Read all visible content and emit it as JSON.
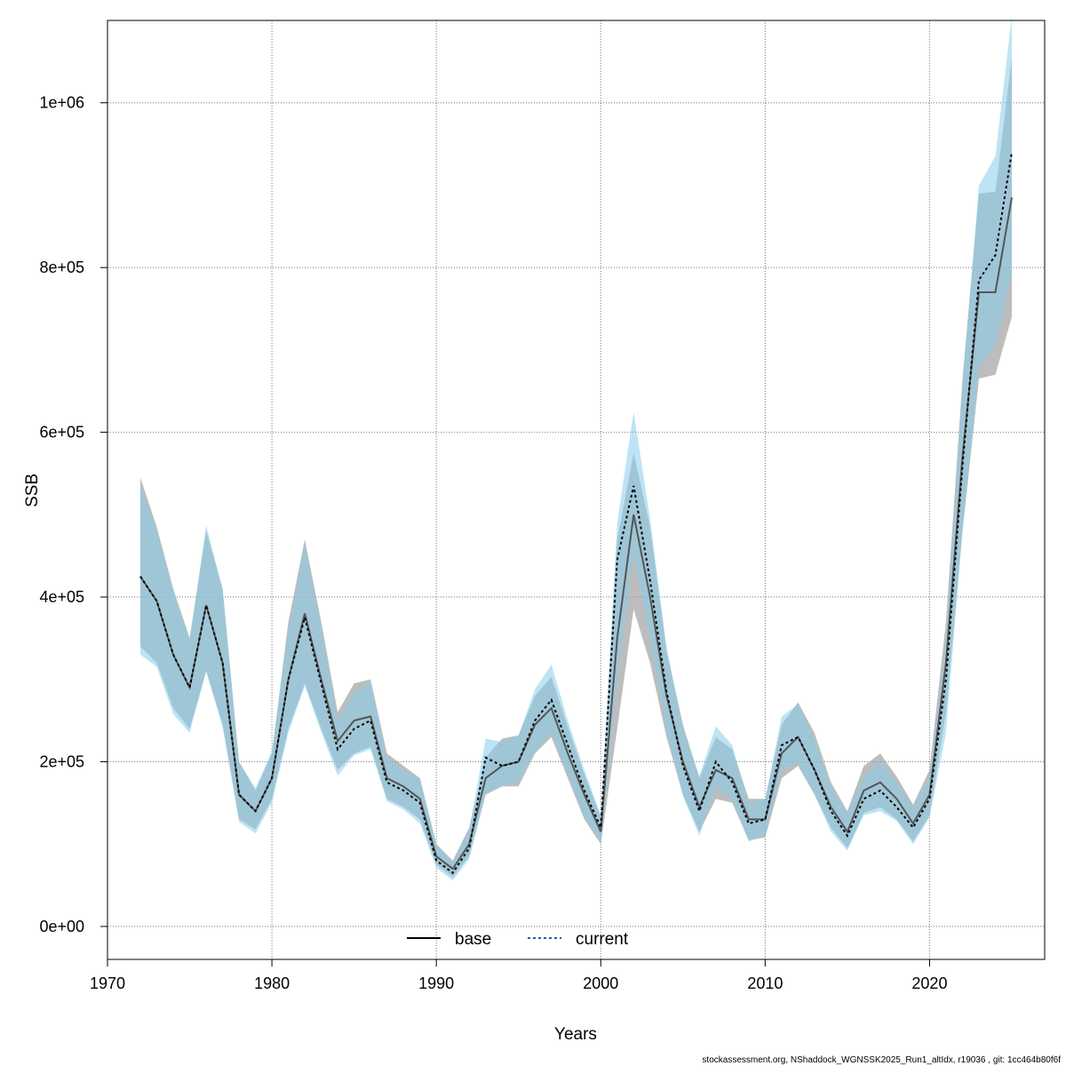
{
  "chart_data": {
    "type": "line",
    "xlabel": "Years",
    "ylabel": "SSB",
    "xlim": [
      1970,
      2027
    ],
    "ylim": [
      -40000,
      1100000
    ],
    "x_ticks": [
      1970,
      1980,
      1990,
      2000,
      2010,
      2020
    ],
    "x_tick_labels": [
      "1970",
      "1980",
      "1990",
      "2000",
      "2010",
      "2020"
    ],
    "y_ticks": [
      0,
      200000,
      400000,
      600000,
      800000,
      1000000
    ],
    "y_tick_labels": [
      "0e+00",
      "2e+05",
      "4e+05",
      "6e+05",
      "8e+05",
      "1e+06"
    ],
    "grid": true,
    "legend_position": "bottom-center",
    "x": [
      1972,
      1973,
      1974,
      1975,
      1976,
      1977,
      1978,
      1979,
      1980,
      1981,
      1982,
      1983,
      1984,
      1985,
      1986,
      1987,
      1988,
      1989,
      1990,
      1991,
      1992,
      1993,
      1994,
      1995,
      1996,
      1997,
      1998,
      1999,
      2000,
      2001,
      2002,
      2003,
      2004,
      2005,
      2006,
      2007,
      2008,
      2009,
      2010,
      2011,
      2012,
      2013,
      2014,
      2015,
      2016,
      2017,
      2018,
      2019,
      2020,
      2021,
      2022,
      2023,
      2024,
      2025
    ],
    "series": [
      {
        "name": "base",
        "color": "#000000",
        "band_color": "#999999",
        "line_style": "solid",
        "values": [
          425000,
          395000,
          330000,
          290000,
          390000,
          320000,
          160000,
          140000,
          180000,
          300000,
          380000,
          300000,
          225000,
          250000,
          255000,
          180000,
          170000,
          155000,
          85000,
          70000,
          100000,
          180000,
          195000,
          200000,
          245000,
          265000,
          210000,
          160000,
          115000,
          350000,
          500000,
          400000,
          280000,
          200000,
          145000,
          190000,
          180000,
          130000,
          130000,
          210000,
          230000,
          190000,
          145000,
          115000,
          165000,
          175000,
          155000,
          125000,
          160000,
          320000,
          570000,
          770000,
          770000,
          885000
        ],
        "lower": [
          340000,
          320000,
          265000,
          240000,
          310000,
          245000,
          130000,
          118000,
          155000,
          240000,
          295000,
          240000,
          190000,
          210000,
          218000,
          155000,
          145000,
          130000,
          75000,
          60000,
          85000,
          160000,
          170000,
          170000,
          210000,
          230000,
          180000,
          130000,
          100000,
          240000,
          385000,
          320000,
          230000,
          160000,
          115000,
          155000,
          150000,
          105000,
          108000,
          180000,
          195000,
          160000,
          120000,
          95000,
          138000,
          145000,
          130000,
          103000,
          135000,
          260000,
          480000,
          665000,
          670000,
          740000
        ],
        "upper": [
          545000,
          485000,
          410000,
          350000,
          480000,
          410000,
          200000,
          165000,
          210000,
          370000,
          470000,
          370000,
          260000,
          295000,
          300000,
          210000,
          195000,
          180000,
          100000,
          80000,
          120000,
          205000,
          228000,
          232000,
          280000,
          303000,
          242000,
          185000,
          133000,
          470000,
          575000,
          485000,
          335000,
          245000,
          180000,
          230000,
          215000,
          155000,
          155000,
          245000,
          272000,
          235000,
          175000,
          140000,
          195000,
          210000,
          182000,
          148000,
          190000,
          370000,
          665000,
          890000,
          892000,
          1055000
        ]
      },
      {
        "name": "current",
        "color": "#1f5fa8",
        "band_color": "#87ceeb",
        "line_style": "dotted",
        "values": [
          425000,
          395000,
          330000,
          290000,
          390000,
          320000,
          160000,
          140000,
          180000,
          300000,
          375000,
          295000,
          215000,
          240000,
          250000,
          175000,
          165000,
          150000,
          80000,
          65000,
          95000,
          205000,
          195000,
          200000,
          250000,
          275000,
          220000,
          165000,
          120000,
          445000,
          535000,
          420000,
          285000,
          195000,
          140000,
          200000,
          175000,
          125000,
          130000,
          220000,
          230000,
          190000,
          140000,
          110000,
          155000,
          165000,
          145000,
          120000,
          155000,
          300000,
          560000,
          785000,
          815000,
          940000
        ],
        "lower": [
          330000,
          315000,
          258000,
          235000,
          310000,
          242000,
          127000,
          113000,
          150000,
          235000,
          292000,
          236000,
          183000,
          208000,
          215000,
          152000,
          142000,
          125000,
          71000,
          56000,
          82000,
          162000,
          171000,
          175000,
          212000,
          235000,
          185000,
          133000,
          102000,
          300000,
          450000,
          350000,
          238000,
          158000,
          110000,
          170000,
          155000,
          103000,
          110000,
          190000,
          198000,
          160000,
          115000,
          92000,
          135000,
          140000,
          128000,
          100000,
          132000,
          235000,
          480000,
          680000,
          705000,
          795000
        ],
        "upper": [
          535000,
          482000,
          407000,
          348000,
          487000,
          410000,
          200000,
          168000,
          213000,
          360000,
          465000,
          365000,
          250000,
          283000,
          297000,
          205000,
          190000,
          180000,
          100000,
          78000,
          118000,
          228000,
          224000,
          232000,
          288000,
          318000,
          250000,
          190000,
          135000,
          490000,
          625000,
          495000,
          340000,
          240000,
          183000,
          243000,
          220000,
          150000,
          155000,
          255000,
          270000,
          228000,
          168000,
          138000,
          182000,
          200000,
          175000,
          143000,
          182000,
          345000,
          660000,
          900000,
          935000,
          1105000
        ]
      }
    ]
  },
  "footer": "stockassessment.org, NShaddock_WGNSSK2025_Run1_altIdx, r19036 , git: 1cc464b80f6f"
}
